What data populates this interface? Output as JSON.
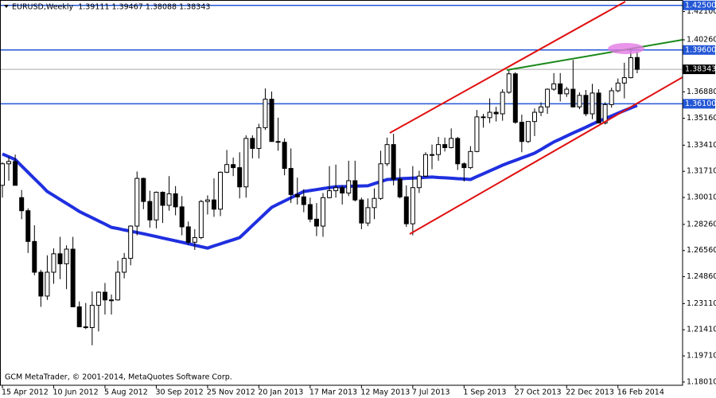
{
  "chart_data": {
    "type": "candlestick",
    "title": "EURUSD,Weekly  1.39111 1.39467 1.38088 1.38343",
    "footer": "GCM MetaTrader, © 2001-2014, MetaQuotes Software Corp.",
    "categories": [
      "15 Apr 2012",
      null,
      null,
      null,
      null,
      null,
      null,
      null,
      "10 Jun 2012",
      null,
      null,
      null,
      null,
      null,
      null,
      null,
      "5 Aug 2012",
      null,
      null,
      null,
      null,
      null,
      null,
      null,
      "30 Sep 2012",
      null,
      null,
      null,
      null,
      null,
      null,
      null,
      "25 Nov 2012",
      null,
      null,
      null,
      null,
      null,
      null,
      null,
      "20 Jan 2013",
      null,
      null,
      null,
      null,
      null,
      null,
      null,
      "17 Mar 2013",
      null,
      null,
      null,
      null,
      null,
      null,
      null,
      "12 May 2013",
      null,
      null,
      null,
      null,
      null,
      null,
      null,
      "7 Jul 2013",
      null,
      null,
      null,
      null,
      null,
      null,
      null,
      "1 Sep 2013",
      null,
      null,
      null,
      null,
      null,
      null,
      null,
      "27 Oct 2013",
      null,
      null,
      null,
      null,
      null,
      null,
      null,
      "22 Dec 2013",
      null,
      null,
      null,
      null,
      null,
      null,
      null,
      "16 Feb 2014",
      null,
      null,
      null
    ],
    "open": [
      1.308,
      1.322,
      1.3235,
      1.3,
      1.2915,
      1.2715,
      1.2515,
      1.236,
      1.2515,
      1.2635,
      1.257,
      1.2665,
      1.229,
      1.216,
      1.2155,
      1.23,
      1.2385,
      1.2335,
      1.2335,
      1.2515,
      1.2605,
      1.2815,
      1.3125,
      1.2975,
      1.2855,
      1.3035,
      1.295,
      1.3025,
      1.294,
      1.281,
      1.271,
      1.274,
      1.2975,
      1.2985,
      1.2925,
      1.3165,
      1.3215,
      1.3195,
      1.307,
      1.3385,
      1.332,
      1.3455,
      1.364,
      1.3365,
      1.336,
      1.319,
      1.302,
      1.3005,
      1.2955,
      1.286,
      1.2815,
      1.3,
      1.3045,
      1.3065,
      1.303,
      1.311,
      1.2985,
      1.2835,
      1.2935,
      1.2995,
      1.322,
      1.3345,
      1.312,
      1.3005,
      1.283,
      1.3065,
      1.314,
      1.328,
      1.328,
      1.3345,
      1.3325,
      1.3385,
      1.322,
      1.3195,
      1.33,
      1.3525,
      1.352,
      1.3555,
      1.3545,
      1.3685,
      1.3805,
      1.349,
      1.3365,
      1.3495,
      1.3555,
      1.359,
      1.3705,
      1.374,
      1.3675,
      1.3705,
      1.359,
      1.3665,
      1.3545,
      1.368,
      1.3485,
      1.3605,
      1.3695,
      1.3745,
      1.378,
      1.39111
    ],
    "high": [
      1.323,
      1.3265,
      1.328,
      1.305,
      1.293,
      1.282,
      1.253,
      1.2625,
      1.267,
      1.2745,
      1.269,
      1.2745,
      1.2325,
      1.2315,
      1.239,
      1.239,
      1.2445,
      1.237,
      1.259,
      1.264,
      1.282,
      1.317,
      1.313,
      1.3045,
      1.304,
      1.304,
      1.314,
      1.3075,
      1.301,
      1.2845,
      1.2795,
      1.2985,
      1.3015,
      1.3125,
      1.317,
      1.331,
      1.326,
      1.3295,
      1.3405,
      1.3405,
      1.348,
      1.371,
      1.369,
      1.352,
      1.3385,
      1.332,
      1.313,
      1.3055,
      1.3,
      1.2965,
      1.303,
      1.3205,
      1.3215,
      1.308,
      1.324,
      1.324,
      1.3,
      1.2995,
      1.306,
      1.3305,
      1.339,
      1.3415,
      1.319,
      1.308,
      1.3205,
      1.3175,
      1.3295,
      1.3345,
      1.3395,
      1.339,
      1.345,
      1.3395,
      1.323,
      1.3335,
      1.357,
      1.3545,
      1.3645,
      1.359,
      1.3705,
      1.383,
      1.3815,
      1.354,
      1.3495,
      1.358,
      1.362,
      1.371,
      1.381,
      1.381,
      1.372,
      1.3895,
      1.3685,
      1.37,
      1.374,
      1.3705,
      1.362,
      1.3715,
      1.3775,
      1.3877,
      1.3967,
      1.39467
    ],
    "low": [
      1.3,
      1.311,
      1.309,
      1.286,
      1.264,
      1.2495,
      1.229,
      1.2335,
      1.244,
      1.247,
      1.2405,
      1.229,
      1.2165,
      1.2145,
      1.204,
      1.213,
      1.224,
      1.224,
      1.233,
      1.2475,
      1.256,
      1.2755,
      1.2925,
      1.2805,
      1.28,
      1.2835,
      1.2915,
      1.2885,
      1.2755,
      1.2695,
      1.266,
      1.273,
      1.289,
      1.2875,
      1.288,
      1.316,
      1.314,
      1.2995,
      1.3,
      1.3255,
      1.3255,
      1.344,
      1.337,
      1.3305,
      1.3145,
      1.2965,
      1.2955,
      1.2905,
      1.284,
      1.275,
      1.2745,
      1.2995,
      1.3,
      1.2955,
      1.301,
      1.2975,
      1.2795,
      1.2815,
      1.286,
      1.2985,
      1.3205,
      1.308,
      1.2995,
      1.281,
      1.2755,
      1.303,
      1.3135,
      1.3185,
      1.324,
      1.33,
      1.332,
      1.318,
      1.3105,
      1.3185,
      1.3295,
      1.3455,
      1.3485,
      1.3495,
      1.35,
      1.3675,
      1.348,
      1.3295,
      1.3355,
      1.34,
      1.353,
      1.3545,
      1.3695,
      1.3625,
      1.3655,
      1.3585,
      1.3575,
      1.353,
      1.351,
      1.35,
      1.3475,
      1.3585,
      1.3685,
      1.3645,
      1.3775,
      1.38088
    ],
    "close": [
      1.322,
      1.3235,
      1.308,
      1.2915,
      1.2715,
      1.2515,
      1.236,
      1.2515,
      1.2635,
      1.257,
      1.2665,
      1.229,
      1.216,
      1.2155,
      1.23,
      1.2385,
      1.2335,
      1.2335,
      1.2515,
      1.2605,
      1.2815,
      1.3125,
      1.2975,
      1.2855,
      1.3035,
      1.295,
      1.3025,
      1.294,
      1.281,
      1.271,
      1.274,
      1.2975,
      1.2985,
      1.2925,
      1.3165,
      1.3215,
      1.3195,
      1.307,
      1.3385,
      1.332,
      1.3455,
      1.364,
      1.3365,
      1.336,
      1.319,
      1.302,
      1.3005,
      1.2955,
      1.286,
      1.2815,
      1.3,
      1.3045,
      1.3065,
      1.303,
      1.311,
      1.2985,
      1.2835,
      1.2935,
      1.2995,
      1.322,
      1.3345,
      1.312,
      1.3005,
      1.283,
      1.3065,
      1.314,
      1.328,
      1.328,
      1.3345,
      1.3325,
      1.3385,
      1.322,
      1.3195,
      1.33,
      1.3525,
      1.352,
      1.3555,
      1.3545,
      1.3685,
      1.3805,
      1.349,
      1.3365,
      1.3495,
      1.3555,
      1.359,
      1.3705,
      1.374,
      1.3675,
      1.3705,
      1.359,
      1.3665,
      1.3545,
      1.368,
      1.3485,
      1.3605,
      1.3695,
      1.3745,
      1.378,
      1.391,
      1.38343
    ],
    "bull_color": "#ffffff",
    "bear_color": "#000000",
    "outline_color": "#000000",
    "lines": [
      {
        "color": "#1f2fdf",
        "values": [
          1.3284,
          1.3266,
          1.3248,
          1.3206,
          1.3165,
          1.3123,
          1.3082,
          1.304,
          1.3014,
          1.2988,
          1.2962,
          1.2936,
          1.291,
          1.2889,
          1.2869,
          1.2848,
          1.2828,
          1.2807,
          1.2799,
          1.279,
          1.2782,
          1.2773,
          1.2765,
          1.2756,
          1.2747,
          1.2737,
          1.2728,
          1.2719,
          1.271,
          1.27,
          1.2691,
          1.2681,
          1.2672,
          1.2686,
          1.2699,
          1.2713,
          1.2726,
          1.274,
          1.2779,
          1.2819,
          1.2858,
          1.2898,
          1.2937,
          1.2958,
          1.2978,
          1.2999,
          1.3019,
          1.304,
          1.3046,
          1.3052,
          1.3059,
          1.3065,
          1.3071,
          1.3072,
          1.3073,
          1.3075,
          1.3076,
          1.3077,
          1.3091,
          1.3104,
          1.3118,
          1.312,
          1.3123,
          1.3125,
          1.3127,
          1.3129,
          1.3132,
          1.3134,
          1.3131,
          1.3129,
          1.3126,
          1.3123,
          1.3121,
          1.3118,
          1.3137,
          1.3155,
          1.3174,
          1.3192,
          1.3211,
          1.3227,
          1.3242,
          1.3258,
          1.3273,
          1.3289,
          1.3313,
          1.3338,
          1.3362,
          1.3381,
          1.3401,
          1.342,
          1.3439,
          1.3458,
          1.3478,
          1.3497,
          1.3514,
          1.3531,
          1.3549,
          1.3566,
          1.3583,
          1.36
        ]
      }
    ],
    "levels": [
      {
        "value": 1.425,
        "label": "1.42500"
      },
      {
        "value": 1.396,
        "label": "1.39600"
      },
      {
        "value": 1.361,
        "label": "1.36100"
      }
    ],
    "level_color": "#2457d6",
    "current_price": {
      "value": 1.38343,
      "label": "1.38343"
    },
    "ylim": [
      1.178,
      1.4285
    ],
    "yticks": [
      {
        "value": 1.421,
        "label": "1.42100"
      },
      {
        "value": 1.4026,
        "label": "1.40260"
      },
      {
        "value": 1.3688,
        "label": "1.36880"
      },
      {
        "value": 1.3516,
        "label": "1.35160"
      },
      {
        "value": 1.3341,
        "label": "1.33410"
      },
      {
        "value": 1.3171,
        "label": "1.31710"
      },
      {
        "value": 1.3001,
        "label": "1.30010"
      },
      {
        "value": 1.2826,
        "label": "1.28260"
      },
      {
        "value": 1.2656,
        "label": "1.26560"
      },
      {
        "value": 1.2486,
        "label": "1.24860"
      },
      {
        "value": 1.2311,
        "label": "1.23110"
      },
      {
        "value": 1.2141,
        "label": "1.21410"
      },
      {
        "value": 1.1971,
        "label": "1.19710"
      },
      {
        "value": 1.1801,
        "label": "1.18010"
      }
    ],
    "grid": false
  }
}
